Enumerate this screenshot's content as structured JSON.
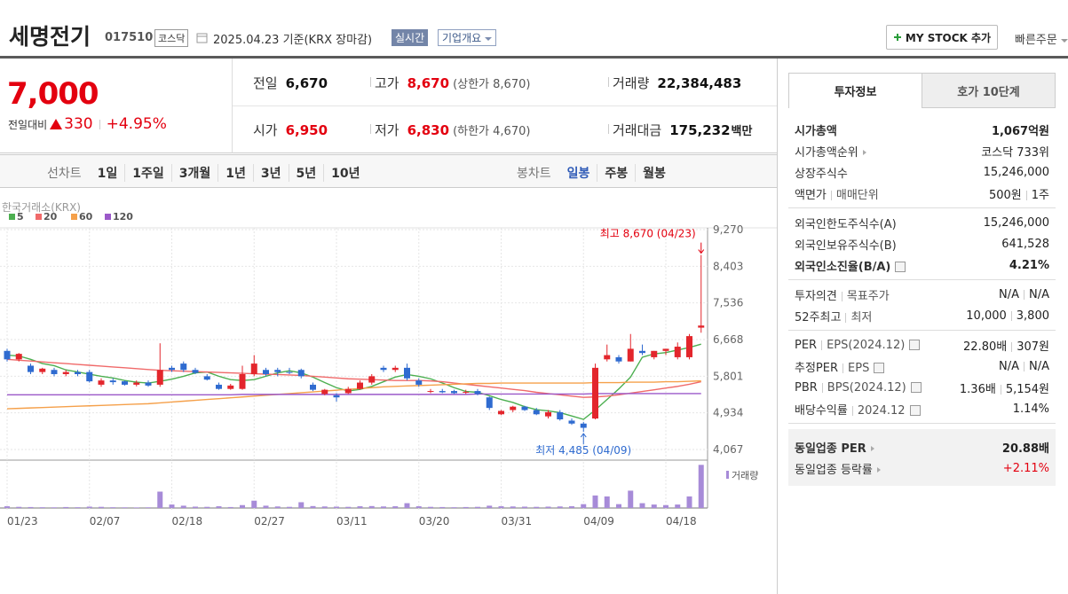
{
  "header": {
    "name": "세명전기",
    "code": "017510",
    "market": "코스닥",
    "date": "2025.04.23 기준(KRX 장마감)",
    "realtime": "실시간",
    "overview": "기업개요",
    "mystock": "MY STOCK 추가",
    "quick_order": "빠른주문"
  },
  "price": {
    "current": "7,000",
    "change_label": "전일대비",
    "change": "330",
    "change_rate": "+4.95%"
  },
  "info": [
    {
      "label": "전일",
      "value": "6,670"
    },
    {
      "label": "고가",
      "value": "8,670",
      "note": "(상한가 8,670)",
      "color": "#e3000f"
    },
    {
      "label": "거래량",
      "value": "22,384,483"
    },
    {
      "label": "시가",
      "value": "6,950",
      "color": "#e3000f"
    },
    {
      "label": "저가",
      "value": "6,830",
      "note": "(하한가 4,670)",
      "color": "#e3000f"
    },
    {
      "label": "거래대금",
      "value": "175,232",
      "unit": "백만"
    }
  ],
  "chart_tabs": {
    "line": [
      "선차트",
      "1일",
      "1주일",
      "3개월",
      "1년",
      "3년",
      "5년",
      "10년"
    ],
    "candle": [
      "봉차트",
      "일봉",
      "주봉",
      "월봉"
    ],
    "active": "일봉"
  },
  "chart_data": {
    "type": "candlestick",
    "source": "한국거래소(KRX)",
    "categories": [
      "01/23",
      null,
      null,
      null,
      null,
      null,
      null,
      "02/07",
      null,
      null,
      null,
      null,
      null,
      null,
      "02/18",
      null,
      null,
      null,
      null,
      null,
      null,
      "02/27",
      null,
      null,
      null,
      null,
      null,
      null,
      "03/11",
      null,
      null,
      null,
      null,
      null,
      null,
      "03/20",
      null,
      null,
      null,
      null,
      null,
      null,
      "03/31",
      null,
      null,
      null,
      null,
      null,
      null,
      "04/09",
      null,
      null,
      null,
      null,
      null,
      null,
      "04/18",
      null,
      null,
      null
    ],
    "open": [
      6400,
      6200,
      6050,
      5900,
      5950,
      5850,
      5900,
      5900,
      5600,
      5700,
      5680,
      5600,
      5650,
      5600,
      6000,
      6100,
      5950,
      5800,
      5600,
      5500,
      5500,
      5850,
      5950,
      5950,
      5900,
      5950,
      5600,
      5380,
      5350,
      5400,
      5500,
      5650,
      6000,
      5950,
      6000,
      5700,
      5450,
      5450,
      5450,
      5420,
      5450,
      5300,
      4900,
      5000,
      5080,
      5000,
      4850,
      4950,
      4750,
      4680,
      4800,
      6200,
      6250,
      6150,
      6400,
      6250,
      6400,
      6250,
      6250,
      6950
    ],
    "high": [
      6450,
      6350,
      6100,
      6000,
      6000,
      5950,
      5950,
      5950,
      5750,
      5750,
      5700,
      5700,
      5700,
      6580,
      6050,
      6150,
      6000,
      5850,
      5650,
      5620,
      6050,
      6300,
      6000,
      6000,
      6000,
      5980,
      5650,
      5500,
      5400,
      5550,
      5700,
      5850,
      6050,
      6050,
      6100,
      5750,
      5500,
      5500,
      5480,
      5480,
      5500,
      5320,
      5000,
      5100,
      5100,
      5050,
      5000,
      5000,
      4800,
      4720,
      6100,
      6550,
      6300,
      6800,
      6550,
      6400,
      6450,
      6600,
      6800,
      8670
    ],
    "low": [
      6150,
      6150,
      5850,
      5850,
      5800,
      5800,
      5800,
      5650,
      5550,
      5600,
      5580,
      5560,
      5550,
      5550,
      5900,
      5900,
      5850,
      5700,
      5480,
      5480,
      5480,
      5800,
      5800,
      5800,
      5850,
      5750,
      5450,
      5350,
      5200,
      5380,
      5480,
      5600,
      5900,
      5900,
      5700,
      5550,
      5400,
      5400,
      5380,
      5380,
      5350,
      5000,
      4880,
      4950,
      4980,
      4880,
      4800,
      4750,
      4650,
      4485,
      4780,
      6150,
      6100,
      6150,
      6300,
      6200,
      6300,
      6200,
      6200,
      6830
    ],
    "close": [
      6200,
      6330,
      5900,
      5980,
      5850,
      5900,
      5850,
      5680,
      5700,
      5660,
      5600,
      5650,
      5580,
      5950,
      5950,
      5950,
      5880,
      5720,
      5500,
      5580,
      5850,
      6100,
      5850,
      5900,
      5880,
      5800,
      5480,
      5480,
      5300,
      5500,
      5650,
      5800,
      5950,
      6000,
      5750,
      5600,
      5450,
      5420,
      5400,
      5430,
      5380,
      5050,
      4980,
      5080,
      5000,
      4900,
      4950,
      4780,
      4680,
      4580,
      6000,
      6300,
      6150,
      6450,
      6350,
      6400,
      6450,
      6500,
      6750,
      7000
    ],
    "up_color": "#e3262c",
    "down_color": "#2f6bd0",
    "series": [
      {
        "name": "5",
        "color": "#4caf50",
        "values": [
          6300,
          6280,
          6200,
          6100,
          6050,
          5950,
          5900,
          5850,
          5800,
          5760,
          5700,
          5660,
          5640,
          5680,
          5730,
          5800,
          5880,
          5900,
          5800,
          5720,
          5700,
          5720,
          5800,
          5880,
          5930,
          5880,
          5780,
          5650,
          5530,
          5450,
          5490,
          5560,
          5670,
          5780,
          5840,
          5800,
          5740,
          5640,
          5530,
          5440,
          5420,
          5340,
          5250,
          5180,
          5080,
          5010,
          4980,
          4940,
          4860,
          4780,
          5000,
          5250,
          5500,
          5780,
          6250,
          6330,
          6360,
          6420,
          6480,
          6560
        ]
      },
      {
        "name": "20",
        "color": "#f06a6a",
        "values": [
          6200,
          6180,
          6160,
          6140,
          6120,
          6100,
          6080,
          6060,
          6040,
          6020,
          6000,
          5980,
          5960,
          5940,
          5930,
          5920,
          5910,
          5900,
          5890,
          5880,
          5870,
          5860,
          5850,
          5840,
          5830,
          5820,
          5800,
          5780,
          5760,
          5740,
          5730,
          5720,
          5710,
          5700,
          5700,
          5700,
          5690,
          5670,
          5640,
          5610,
          5580,
          5550,
          5520,
          5490,
          5460,
          5420,
          5390,
          5360,
          5330,
          5300,
          5310,
          5330,
          5360,
          5400,
          5440,
          5480,
          5520,
          5560,
          5610,
          5670
        ]
      },
      {
        "name": "60",
        "color": "#f5a04a",
        "values": [
          5030,
          5040,
          5050,
          5060,
          5070,
          5080,
          5090,
          5100,
          5110,
          5120,
          5130,
          5140,
          5150,
          5170,
          5190,
          5210,
          5230,
          5250,
          5270,
          5290,
          5310,
          5330,
          5350,
          5370,
          5390,
          5410,
          5430,
          5450,
          5470,
          5490,
          5510,
          5530,
          5550,
          5560,
          5570,
          5580,
          5590,
          5600,
          5610,
          5620,
          5630,
          5630,
          5640,
          5640,
          5640,
          5640,
          5640,
          5640,
          5640,
          5640,
          5650,
          5650,
          5650,
          5660,
          5660,
          5660,
          5670,
          5670,
          5680,
          5690
        ]
      },
      {
        "name": "120",
        "color": "#9b59c9",
        "values": [
          5360,
          5360,
          5360,
          5360,
          5360,
          5360,
          5360,
          5360,
          5360,
          5360,
          5360,
          5360,
          5360,
          5360,
          5360,
          5360,
          5360,
          5360,
          5360,
          5360,
          5370,
          5370,
          5370,
          5370,
          5370,
          5370,
          5370,
          5370,
          5370,
          5370,
          5370,
          5370,
          5370,
          5370,
          5370,
          5370,
          5370,
          5370,
          5370,
          5370,
          5380,
          5380,
          5380,
          5380,
          5380,
          5380,
          5380,
          5380,
          5380,
          5380,
          5390,
          5390,
          5390,
          5390,
          5390,
          5390,
          5390,
          5390,
          5390,
          5390
        ]
      }
    ],
    "volume": {
      "name": "거래량",
      "color": "#a78bd8",
      "ylim": [
        0,
        23000000
      ],
      "values": [
        900000,
        600000,
        500000,
        400000,
        350000,
        500000,
        400000,
        700000,
        600000,
        400000,
        350000,
        300000,
        350000,
        8500000,
        1800000,
        1200000,
        700000,
        600000,
        900000,
        500000,
        1500000,
        3800000,
        1200000,
        800000,
        600000,
        3000000,
        1000000,
        800000,
        700000,
        600000,
        900000,
        1000000,
        800000,
        900000,
        2500000,
        900000,
        600000,
        500000,
        400000,
        500000,
        600000,
        1200000,
        900000,
        800000,
        700000,
        600000,
        700000,
        800000,
        900000,
        2000000,
        6500000,
        6000000,
        2000000,
        9000000,
        2500000,
        1800000,
        1500000,
        1800000,
        6000000,
        22384483
      ]
    },
    "ylim": [
      3815,
      9270
    ],
    "yticks": [
      {
        "value": 9270,
        "label": "9,270"
      },
      {
        "value": 8403,
        "label": "8,403"
      },
      {
        "value": 7536,
        "label": "7,536"
      },
      {
        "value": 6668,
        "label": "6,668"
      },
      {
        "value": 5801,
        "label": "5,801"
      },
      {
        "value": 4934,
        "label": "4,934"
      },
      {
        "value": 4067,
        "label": "4,067"
      }
    ],
    "grid": true,
    "annotations": [
      {
        "text": "최고 8,670 (04/23)",
        "color": "#e3000f"
      },
      {
        "text": "최저 4,485 (04/09)",
        "color": "#2f6bd0"
      }
    ]
  },
  "side": {
    "tabs": [
      "투자정보",
      "호가 10단계"
    ],
    "groups": [
      {
        "rows": [
          {
            "label": [
              "시가총액"
            ],
            "value": [
              "1,067억원"
            ],
            "bold": true
          },
          {
            "label": [
              "시가총액순위"
            ],
            "value": [
              "코스닥 733위"
            ],
            "arrow": true
          },
          {
            "label": [
              "상장주식수"
            ],
            "value": [
              "15,246,000"
            ]
          },
          {
            "label": [
              "액면가",
              "매매단위"
            ],
            "value": [
              "500원",
              "1주"
            ]
          }
        ]
      },
      {
        "rows": [
          {
            "label": [
              "외국인한도주식수(A)"
            ],
            "value": [
              "15,246,000"
            ]
          },
          {
            "label": [
              "외국인보유주식수(B)"
            ],
            "value": [
              "641,528"
            ]
          },
          {
            "label": [
              "외국인소진율(B/A)"
            ],
            "value": [
              "4.21%"
            ],
            "bold": true,
            "help": true
          }
        ]
      },
      {
        "rows": [
          {
            "label": [
              "투자의견",
              "목표주가"
            ],
            "value": [
              "N/A",
              "N/A"
            ]
          },
          {
            "label": [
              "52주최고",
              "최저"
            ],
            "value": [
              "10,000",
              "3,800"
            ]
          }
        ]
      },
      {
        "rows": [
          {
            "label": [
              "PER",
              "EPS(2024.12)"
            ],
            "value": [
              "22.80배",
              "307원"
            ],
            "help": true
          },
          {
            "label": [
              "추정PER",
              "EPS"
            ],
            "value": [
              "N/A",
              "N/A"
            ],
            "help": true
          },
          {
            "label": [
              "PBR",
              "BPS(2024.12)"
            ],
            "value": [
              "1.36배",
              "5,154원"
            ],
            "help": true
          },
          {
            "label": [
              "배당수익률",
              "2024.12"
            ],
            "value": [
              "1.14%"
            ],
            "help": true
          }
        ]
      },
      {
        "shaded": true,
        "rows": [
          {
            "label": [
              "동일업종 PER"
            ],
            "value": [
              "20.88배"
            ],
            "bold": true,
            "arrow": true
          },
          {
            "label": [
              "동일업종 등락률"
            ],
            "value": [
              "+2.11%"
            ],
            "arrow": true,
            "color": "#e3000f"
          }
        ]
      }
    ]
  }
}
